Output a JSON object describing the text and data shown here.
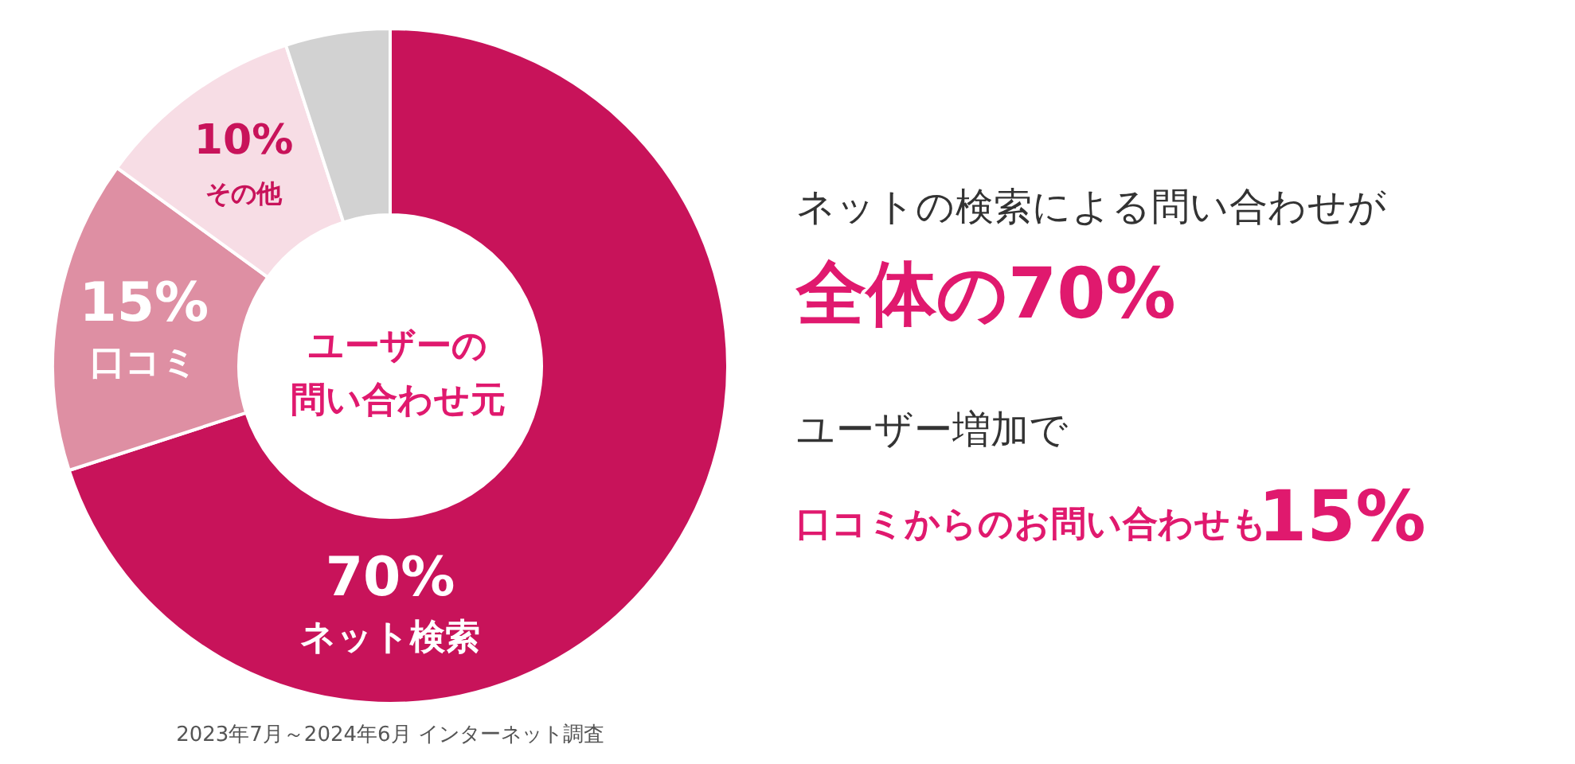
{
  "chart_data": {
    "type": "donut",
    "title": "ユーザーの問い合わせ元",
    "categories": [
      "ネット検索",
      "口コミ",
      "その他",
      null
    ],
    "values": [
      70,
      15,
      10,
      5
    ],
    "value_labels": [
      "70%",
      "15%",
      "10%",
      null
    ],
    "colors": [
      "#c8135a",
      "#de8fa3",
      "#f7dde5",
      "#d2d2d2"
    ],
    "annotations": [
      "ネットの検索による問い合わせが",
      "全体の70%",
      "ユーザー増加で",
      "口コミからのお問い合わせも",
      "15%",
      "2023年7月～2024年6月 インターネット調査"
    ]
  }
}
